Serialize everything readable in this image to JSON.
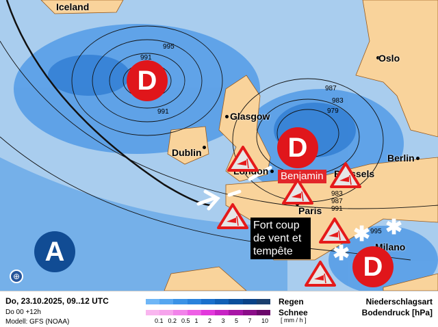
{
  "map": {
    "cities": [
      {
        "name": "Iceland",
        "dot": false
      },
      {
        "name": "Oslo",
        "dot": true
      },
      {
        "name": "Glasgow",
        "dot": true
      },
      {
        "name": "Dublin",
        "dot": true
      },
      {
        "name": "London",
        "dot": true
      },
      {
        "name": "Brussels",
        "dot": true
      },
      {
        "name": "Berlin",
        "dot": true
      },
      {
        "name": "Paris",
        "dot": true
      },
      {
        "name": "Milano",
        "dot": true
      }
    ],
    "lows": [
      "D",
      "D",
      "D"
    ],
    "high": "A",
    "storm_name": "Benjamin",
    "warning_note": "Fort coup de vent et tempête",
    "isobar_labels": [
      "995",
      "991",
      "991",
      "987",
      "983",
      "979",
      "979",
      "983",
      "987",
      "991",
      "995"
    ],
    "colors": {
      "low": "#e0161b",
      "high": "#114c94",
      "land": "#f9d39b",
      "sea": "#a9cdee"
    }
  },
  "legend": {
    "datetime": "Do, 23.10.2025, 09..12 UTC",
    "run": "Do 00 +12h",
    "model": "Modell: GFS (NOAA)",
    "rain_label": "Regen",
    "snow_label": "Schnee",
    "unit": "[ mm / h ]",
    "ticks": [
      "0.1",
      "0.2",
      "0.5",
      "1",
      "2",
      "3",
      "5",
      "7",
      "10"
    ],
    "title1": "Niederschlagsart",
    "title2": "Bodendruck [hPa]",
    "rain_colors": [
      "#6fb6f6",
      "#56a6f0",
      "#3b92e6",
      "#2a82dc",
      "#1a70cc",
      "#1160b6",
      "#0b4f9c",
      "#0a4287",
      "#1a3f6e"
    ],
    "snow_colors": [
      "#f9b6ef",
      "#f6a3ec",
      "#f283ea",
      "#ee5fe5",
      "#e238dc",
      "#c723c4",
      "#a815a6",
      "#8a0d88",
      "#6a086a"
    ]
  }
}
